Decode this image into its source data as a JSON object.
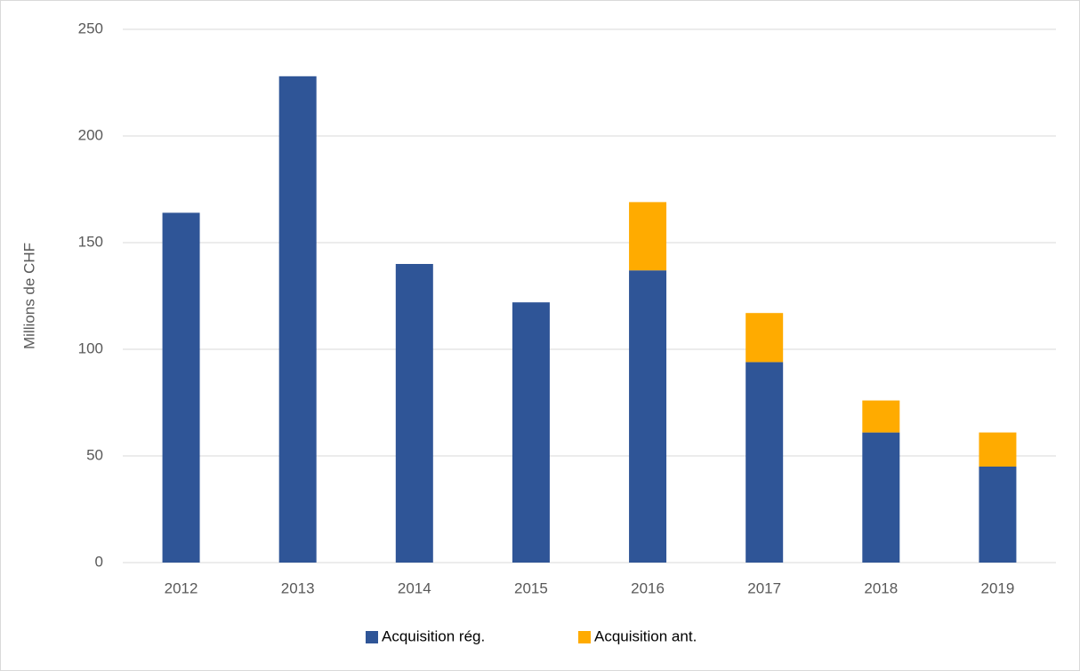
{
  "chart_data": {
    "type": "stacked_bar",
    "y_label": "Millions de CHF",
    "categories": [
      "2012",
      "2013",
      "2014",
      "2015",
      "2016",
      "2017",
      "2018",
      "2019"
    ],
    "series": [
      {
        "name": "Acquisition rég.",
        "color": "#2f5597",
        "values": [
          164,
          228,
          140,
          122,
          137,
          94,
          61,
          45
        ]
      },
      {
        "name": "Acquisition ant.",
        "color": "#ffab00",
        "values": [
          0,
          0,
          0,
          0,
          32,
          23,
          15,
          16
        ]
      }
    ],
    "ylim": [
      0,
      250
    ],
    "yticks": [
      0,
      50,
      100,
      150,
      200,
      250
    ],
    "grid": true,
    "legend": "bottom"
  }
}
